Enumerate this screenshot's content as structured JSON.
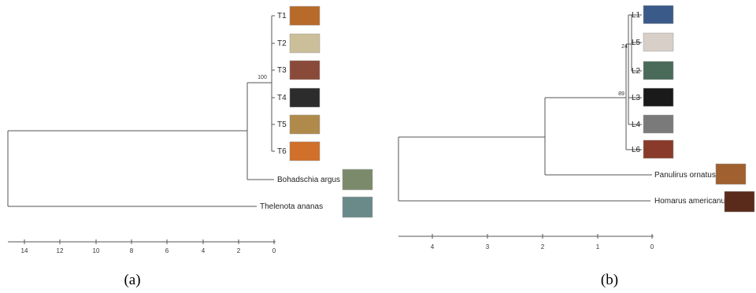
{
  "panel_a": {
    "caption": "(a)",
    "leaves": {
      "t1": "T1",
      "t2": "T2",
      "t3": "T3",
      "t4": "T4",
      "t5": "T5",
      "t6": "T6",
      "bohadschia": "Bohadschia argus",
      "thelenota": "Thelenota ananas"
    },
    "support": {
      "t_clade": "100"
    },
    "axis_ticks": [
      "14",
      "12",
      "10",
      "8",
      "6",
      "4",
      "2",
      "0"
    ]
  },
  "panel_b": {
    "caption": "(b)",
    "leaves": {
      "l1": "L1",
      "l5": "L5",
      "l2": "L2",
      "l3": "L3",
      "l4": "L4",
      "l6": "L6",
      "panulirus": "Panulirus ornatus",
      "homarus": "Homarus americanus"
    },
    "support": {
      "upper": "24",
      "lower": "89"
    },
    "axis_ticks": [
      "4",
      "3",
      "2",
      "1",
      "0"
    ]
  },
  "thumbnail_colors": {
    "t1": "#b86a2a",
    "t2": "#cbbf9a",
    "t3": "#8a4a3a",
    "t4": "#2c2c2c",
    "t5": "#b08a4a",
    "t6": "#d0702a",
    "bohadschia": "#7a8a6a",
    "thelenota": "#6a8a8a",
    "l1": "#3a5a8a",
    "l5": "#d8d0c8",
    "l2": "#4a6a5a",
    "l3": "#1a1a1a",
    "l4": "#7a7a7a",
    "l6": "#8a3a2a",
    "panulirus": "#a06030",
    "homarus": "#5a2a1a"
  }
}
